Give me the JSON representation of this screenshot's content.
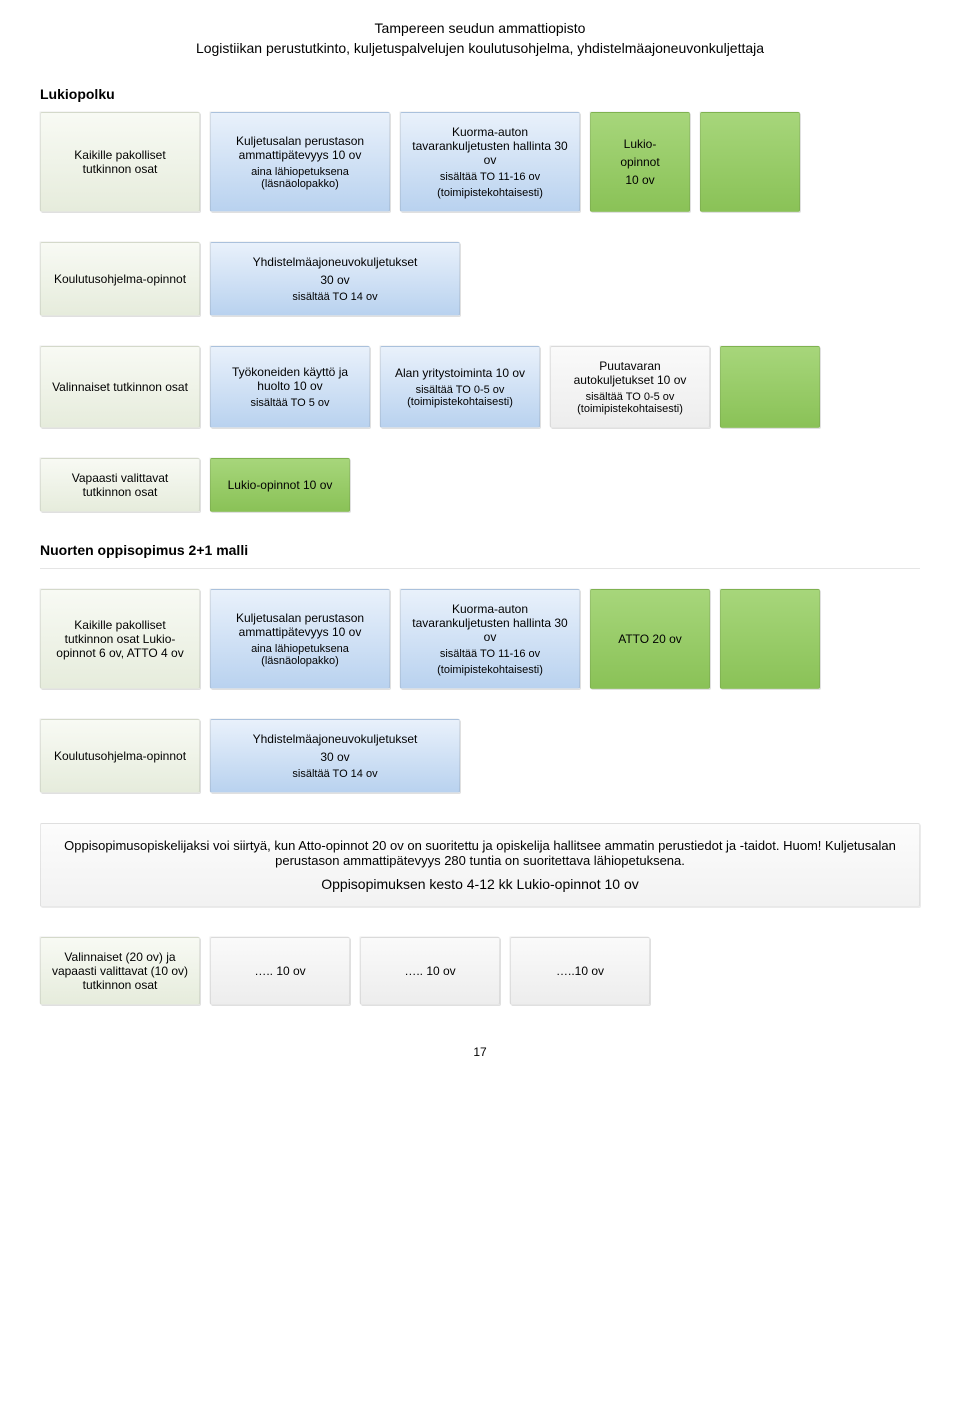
{
  "header": {
    "line1": "Tampereen seudun ammattiopisto",
    "line2": "Logistiikan perustutkinto, kuljetuspalvelujen koulutusohjelma, yhdistelmäajoneuvonkuljettaja"
  },
  "sections": {
    "lukiopolku": "Lukiopolku",
    "nuorten": "Nuorten oppisopimus 2+1 malli"
  },
  "row1": {
    "a": {
      "title": "Kaikille pakolliset tutkinnon osat"
    },
    "b": {
      "l1": "Kuljetusalan perustason ammattipätevyys 10 ov",
      "l2": "aina lähiopetuksena (läsnäolopakko)"
    },
    "c": {
      "l1": "Kuorma-auton tavarankuljetusten hallinta 30 ov",
      "l2": "sisältää TO 11-16 ov",
      "l3": "(toimipistekohtaisesti)"
    },
    "d": {
      "l1": "Lukio-",
      "l2": "opinnot",
      "l3": "10 ov"
    }
  },
  "row2": {
    "a": {
      "title": "Koulutusohjelma-opinnot"
    },
    "b": {
      "l1": "Yhdistelmäajoneuvokuljetukset",
      "l2": "30 ov",
      "l3": "sisältää TO 14 ov"
    }
  },
  "row3": {
    "a": {
      "title": "Valinnaiset tutkinnon osat"
    },
    "b": {
      "l1": "Työkoneiden käyttö ja huolto 10 ov",
      "l2": "sisältää TO 5 ov"
    },
    "c": {
      "l1": "Alan yritystoiminta 10 ov",
      "l2": "sisältää TO 0-5 ov (toimipistekohtaisesti)"
    },
    "d": {
      "l1": "Puutavaran autokuljetukset 10 ov",
      "l2": "sisältää TO 0-5 ov (toimipistekohtaisesti)"
    }
  },
  "row4": {
    "a": {
      "title": "Vapaasti valittavat tutkinnon osat"
    },
    "b": {
      "l1": "Lukio-opinnot 10 ov"
    }
  },
  "row5": {
    "a": {
      "title": "Kaikille pakolliset tutkinnon osat Lukio-opinnot 6 ov, ATTO 4 ov"
    },
    "b": {
      "l1": "Kuljetusalan perustason ammattipätevyys 10 ov",
      "l2": "aina lähiopetuksena (läsnäolopakko)"
    },
    "c": {
      "l1": "Kuorma-auton tavarankuljetusten hallinta 30 ov",
      "l2": "sisältää TO 11-16 ov",
      "l3": "(toimipistekohtaisesti)"
    },
    "d": {
      "title": "ATTO 20 ov"
    }
  },
  "row6": {
    "a": {
      "title": "Koulutusohjelma-opinnot"
    },
    "b": {
      "l1": "Yhdistelmäajoneuvokuljetukset",
      "l2": "30 ov",
      "l3": "sisältää TO 14 ov"
    }
  },
  "note": {
    "l1": "Oppisopimusopiskelijaksi voi siirtyä, kun Atto-opinnot 20 ov on suoritettu ja opiskelija hallitsee ammatin perustiedot ja -taidot. Huom! Kuljetusalan perustason ammattipätevyys 280 tuntia on suoritettava lähiopetuksena.",
    "l2": "Oppisopimuksen kesto 4-12 kk Lukio-opinnot 10 ov"
  },
  "row7": {
    "a": {
      "title": "Valinnaiset (20 ov) ja vapaasti valittavat (10 ov) tutkinnon osat"
    },
    "b": {
      "title": "….. 10 ov"
    },
    "c": {
      "title": "….. 10 ov"
    },
    "d": {
      "title": "…..10 ov"
    }
  },
  "pagenum": "17"
}
